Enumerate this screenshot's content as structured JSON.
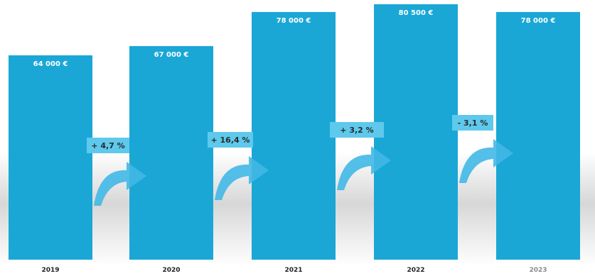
{
  "colors": {
    "bar": "#1aa7d6",
    "change_box": "#5ec9ec",
    "arrow": "#41b8e6",
    "shadow": "#c9c9c9"
  },
  "chart_data": {
    "type": "bar",
    "categories": [
      "2019",
      "2020",
      "2021",
      "2022",
      "2023"
    ],
    "values": [
      64000,
      67000,
      78000,
      80500,
      78000
    ],
    "value_labels": [
      "64 000 €",
      "67 000 €",
      "78 000 €",
      "80 500 €",
      "78 000 €"
    ],
    "changes": [
      "+ 4,7 %",
      "+ 16,4 %",
      "+ 3,2 %",
      "- 3,1 %"
    ],
    "unit": "€",
    "title": "",
    "xlabel": "",
    "ylabel": "",
    "grid": false,
    "legend": "none"
  }
}
